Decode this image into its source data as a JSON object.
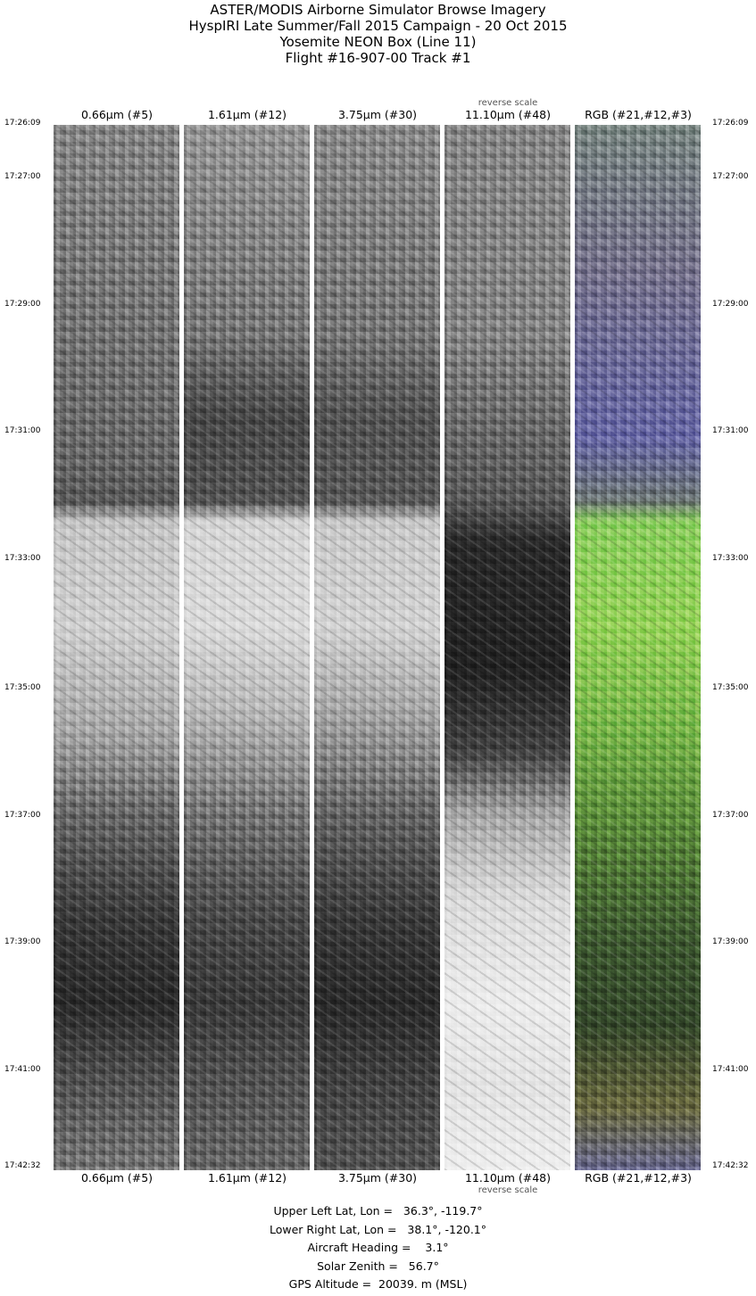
{
  "title_lines": [
    "ASTER/MODIS Airborne Simulator Browse Imagery",
    "HyspIRI Late Summer/Fall 2015 Campaign - 20 Oct 2015",
    "Yosemite NEON Box (Line 11)",
    "Flight #16-907-00 Track #1"
  ],
  "channels": [
    {
      "label": "0.66µm (#5)",
      "note": ""
    },
    {
      "label": "1.61µm (#12)",
      "note": ""
    },
    {
      "label": "3.75µm (#30)",
      "note": ""
    },
    {
      "label": "11.10µm (#48)",
      "note": "reverse scale"
    },
    {
      "label": "RGB (#21,#12,#3)",
      "note": ""
    }
  ],
  "times": [
    "17:26:09",
    "17:27:00",
    "17:29:00",
    "17:31:00",
    "17:33:00",
    "17:35:00",
    "17:37:00",
    "17:39:00",
    "17:41:00",
    "17:42:32"
  ],
  "info": [
    "Upper Left Lat, Lon =   36.3°, -119.7°",
    "Lower Right Lat, Lon =   38.1°, -120.1°",
    "Aircraft Heading =    3.1°",
    "Solar Zenith =   56.7°",
    "GPS Altitude =  20039. m (MSL)"
  ]
}
